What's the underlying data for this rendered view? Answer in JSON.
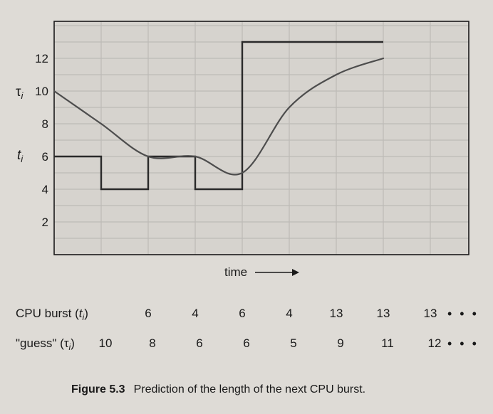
{
  "chart_data": {
    "type": "line",
    "xlabel": "time",
    "y_ticks": [
      "2",
      "4",
      "6",
      "8",
      "10",
      "12"
    ],
    "ylim": [
      0,
      14
    ],
    "grid": true,
    "series": [
      {
        "name": "t_i",
        "style": "step",
        "values": [
          6,
          4,
          6,
          4,
          13,
          13,
          13
        ]
      },
      {
        "name": "τ_i",
        "style": "smooth",
        "values": [
          10,
          8,
          6,
          6,
          5,
          9,
          11,
          12
        ]
      }
    ],
    "series_labels": {
      "tau_symbol": "τ",
      "tau_sub": "i",
      "t_symbol": "t",
      "t_sub": "i"
    },
    "x_arrow_color": "#1a1a1a",
    "step_color": "#2a2a2a",
    "curve_color": "#4d4d4d",
    "grid_color": "#bdbab6",
    "plot_bg": "#d6d3ce"
  },
  "table": {
    "cpu_burst_label_prefix": "CPU burst (",
    "cpu_burst_label_sym": "t",
    "cpu_burst_label_sub": "i",
    "cpu_burst_label_suffix": ")",
    "cpu_burst_values": [
      "6",
      "4",
      "6",
      "4",
      "13",
      "13",
      "13"
    ],
    "guess_label_prefix": "\"guess\" (",
    "guess_label_sym": "τ",
    "guess_label_sub": "i",
    "guess_label_suffix": ")",
    "guess_values": [
      "10",
      "8",
      "6",
      "6",
      "5",
      "9",
      "11",
      "12"
    ],
    "ellipsis": "• • •"
  },
  "caption": {
    "label": "Figure 5.3",
    "text": "Prediction of the length of the next CPU burst."
  }
}
